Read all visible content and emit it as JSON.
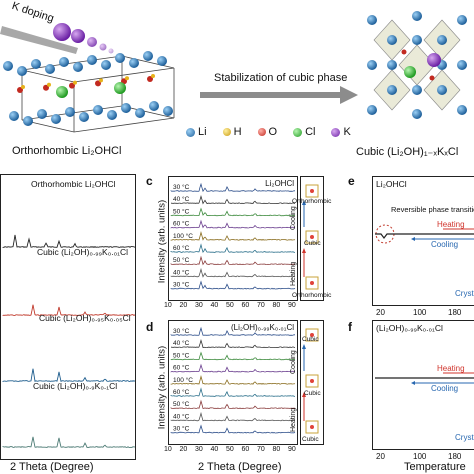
{
  "top": {
    "k_doping": "K doping",
    "stabilization": "Stabilization of cubic phase",
    "left_caption": "Orthorhombic Li₂OHCl",
    "right_caption": "Cubic (Li₂OH)₁₋ₓKₓCl",
    "legend": [
      {
        "label": "Li",
        "color": "#2f86c8"
      },
      {
        "label": "H",
        "color": "#f2c22b"
      },
      {
        "label": "O",
        "color": "#e0433a"
      },
      {
        "label": "Cl",
        "color": "#35c636"
      },
      {
        "label": "K",
        "color": "#8a38c9"
      }
    ]
  },
  "panel_left": {
    "xlabel": "2 Theta (Degree)",
    "series": [
      {
        "label": "Orthorhombic Li₂OHCl",
        "color": "#222222"
      },
      {
        "label": "Cubic (Li₂OH)₀.₉₉K₀.₀₁Cl",
        "color": "#c0392b"
      },
      {
        "label": "Cubic (Li₂OH)₀.₉₅K₀.₀₅Cl",
        "color": "#1f5e8e"
      },
      {
        "label": "Cubic (Li₂OH)₀.₉K₀.₁Cl",
        "color": "#4c7a74"
      }
    ]
  },
  "panel_c": {
    "letter": "c",
    "title": "Li₂OHCl",
    "ylabel": "Intensity (arb. units)",
    "xlabel": "2 Theta (Degree)",
    "xticks": [
      "10",
      "20",
      "30",
      "40",
      "50",
      "60",
      "70",
      "80",
      "90"
    ],
    "temps": [
      "30 °C",
      "40 °C",
      "50 °C",
      "60 °C",
      "100 °C",
      "60 °C",
      "50 °C",
      "40 °C",
      "30 °C"
    ],
    "colors": [
      "#2c4e8a",
      "#333333",
      "#3c8a3c",
      "#6b3f8f",
      "#8a6d1f",
      "#2a6f8a",
      "#8a3c3c",
      "#555555",
      "#2c4e8a"
    ],
    "side_top": "Orthorhombic",
    "side_mid": "Cubic",
    "side_bottom": "Orthorhombic",
    "cooling": "Cooling",
    "heating": "Heating"
  },
  "panel_d": {
    "letter": "d",
    "title": "(Li₂OH)₀.₉₉K₀.₀₁Cl",
    "ylabel": "Intensity (arb. units)",
    "xlabel": "2 Theta (Degree)",
    "xticks": [
      "10",
      "20",
      "30",
      "40",
      "50",
      "60",
      "70",
      "80",
      "90"
    ],
    "temps": [
      "30 °C",
      "40 °C",
      "50 °C",
      "60 °C",
      "100 °C",
      "60 °C",
      "50 °C",
      "40 °C",
      "30 °C"
    ],
    "colors": [
      "#2c4e8a",
      "#333333",
      "#3c8a3c",
      "#6b3f8f",
      "#8a6d1f",
      "#2a6f8a",
      "#8a3c3c",
      "#555555",
      "#2c4e8a"
    ],
    "side_top": "Cubic",
    "side_mid": "Cubic",
    "side_bottom": "Cubic",
    "cooling": "Cooling",
    "heating": "Heating"
  },
  "panel_e": {
    "letter": "e",
    "title": "Li₂OHCl",
    "annotation": "Reversible phase transition",
    "heating": "Heating",
    "cooling": "Cooling",
    "crystal": "Crysta",
    "xticks": [
      "20",
      "100",
      "180"
    ]
  },
  "panel_f": {
    "letter": "f",
    "title": "(Li₂OH)₀.₉₉K₀.₀₁Cl",
    "heating": "Heating",
    "cooling": "Cooling",
    "crystal": "Crysta",
    "xticks": [
      "20",
      "100",
      "180"
    ],
    "xlabel": "Temperature"
  },
  "colors": {
    "heating": "#d0342c",
    "cooling": "#2767b0",
    "arrow": "#8c8c8c"
  }
}
